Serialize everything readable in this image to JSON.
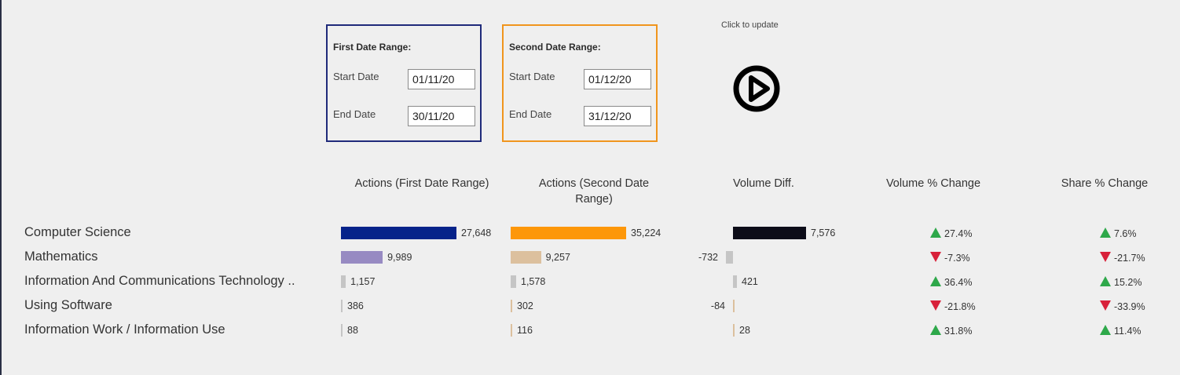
{
  "first_range": {
    "title": "First Date Range:",
    "start_label": "Start Date",
    "end_label": "End Date",
    "start_value": "01/11/20",
    "end_value": "30/11/20",
    "border_color": "#1f2a7a"
  },
  "second_range": {
    "title": "Second Date Range:",
    "start_label": "Start Date",
    "end_label": "End Date",
    "start_value": "01/12/20",
    "end_value": "31/12/20",
    "border_color": "#f0951d"
  },
  "update": {
    "label": "Click to update",
    "icon": "play-circle-icon"
  },
  "columns": {
    "first": "Actions (First Date Range)",
    "second": "Actions (Second Date Range)",
    "diff": "Volume Diff.",
    "vol_change": "Volume % Change",
    "share_change": "Share % Change"
  },
  "colors": {
    "first_primary": "#06238a",
    "second_primary": "#fd9709",
    "diff_primary": "#0c0c18",
    "first_secondary": "#978ac2",
    "second_secondary": "#dcc09e",
    "neutral_bar": "#c5c5c5",
    "up": "#2ea84a",
    "down": "#d8213a"
  },
  "rows": [
    {
      "label": "Computer Science",
      "first": 27648,
      "first_text": "27,648",
      "second": 35224,
      "second_text": "35,224",
      "diff": 7576,
      "diff_text": "7,576",
      "vol_change": "27.4%",
      "vol_dir": "up",
      "share_change": "7.6%",
      "share_dir": "up"
    },
    {
      "label": "Mathematics",
      "first": 9989,
      "first_text": "9,989",
      "second": 9257,
      "second_text": "9,257",
      "diff": -732,
      "diff_text": "-732",
      "vol_change": "-7.3%",
      "vol_dir": "down",
      "share_change": "-21.7%",
      "share_dir": "down"
    },
    {
      "label": "Information And Communications Technology ..",
      "first": 1157,
      "first_text": "1,157",
      "second": 1578,
      "second_text": "1,578",
      "diff": 421,
      "diff_text": "421",
      "vol_change": "36.4%",
      "vol_dir": "up",
      "share_change": "15.2%",
      "share_dir": "up"
    },
    {
      "label": "Using Software",
      "first": 386,
      "first_text": "386",
      "second": 302,
      "second_text": "302",
      "diff": -84,
      "diff_text": "-84",
      "vol_change": "-21.8%",
      "vol_dir": "down",
      "share_change": "-33.9%",
      "share_dir": "down"
    },
    {
      "label": "Information Work / Information Use",
      "first": 88,
      "first_text": "88",
      "second": 116,
      "second_text": "116",
      "diff": 28,
      "diff_text": "28",
      "vol_change": "31.8%",
      "vol_dir": "up",
      "share_change": "11.4%",
      "share_dir": "up"
    }
  ]
}
